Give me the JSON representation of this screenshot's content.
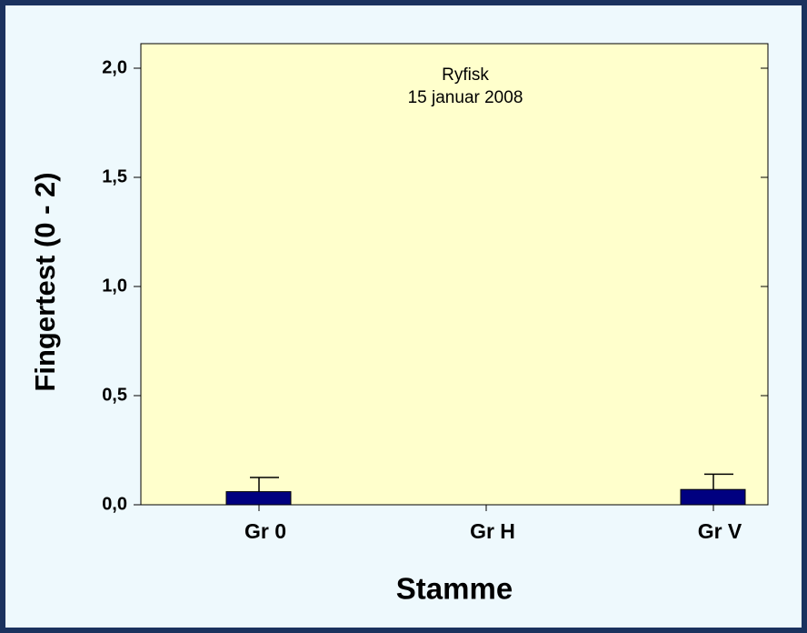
{
  "chart_data": {
    "type": "bar",
    "title": "Ryfisk",
    "subtitle": "15 januar 2008",
    "x_label": "Stamme",
    "y_label": "Fingertest (0 - 2)",
    "categories": [
      "Gr 0",
      "Gr H",
      "Gr V"
    ],
    "values": [
      0.06,
      0,
      0.07
    ],
    "errors": [
      0.065,
      0,
      0.07
    ],
    "color": "#000080",
    "ylim": [
      0,
      2
    ],
    "yticks": [
      {
        "value": 0,
        "label": "0,0"
      },
      {
        "value": 0.5,
        "label": "0,5"
      },
      {
        "value": 1,
        "label": "1,0"
      },
      {
        "value": 1.5,
        "label": "1,5"
      },
      {
        "value": 2,
        "label": "2,0"
      }
    ],
    "grid": false
  }
}
